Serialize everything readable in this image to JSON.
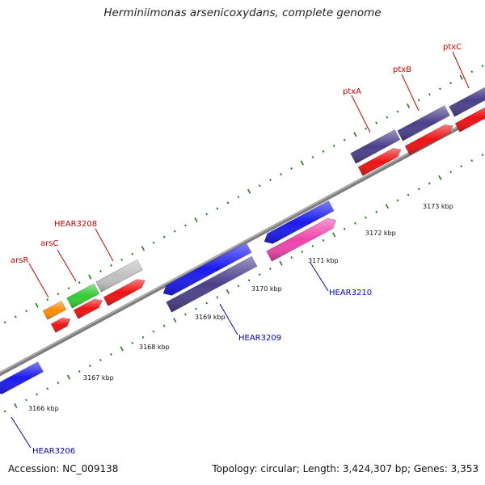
{
  "header": {
    "title": "Herminiimonas arsenicoxydans, complete genome"
  },
  "footer": {
    "accession": "Accession: NC_009138",
    "topology": "Topology: circular; Length: 3,424,307 bp; Genes: 3,353"
  },
  "colors": {
    "backbone": "#8a8a8a",
    "tick": "#1f7a1f",
    "top_label": "#cc0000",
    "bottom_label": "#0000cc",
    "blue": "#1a1aee",
    "navy": "#4a3f8a",
    "red": "#ee1111",
    "orange": "#ff8c00",
    "green": "#33cc33",
    "grey": "#c0c0c0",
    "pink": "#ee44aa"
  },
  "scale_labels": [
    "3166 kbp",
    "3167 kbp",
    "3168 kbp",
    "3169 kbp",
    "3170 kbp",
    "3171 kbp",
    "3172 kbp",
    "3173 kbp"
  ],
  "top_gene_labels": [
    "arsR",
    "arsC",
    "HEAR3208",
    "ptxA",
    "ptxB",
    "ptxC"
  ],
  "bottom_gene_labels": [
    "HEAR3206",
    "HEAR3209",
    "HEAR3210"
  ]
}
